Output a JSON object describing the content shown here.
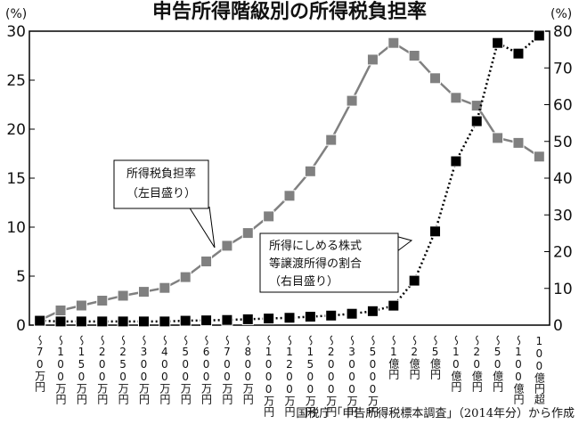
{
  "chart_data": {
    "type": "line",
    "title": "申告所得階級別の所得税負担率",
    "ylabel": "(%)",
    "y2label": "(%)",
    "categories": [
      "〜70万円",
      "〜100万円",
      "〜150万円",
      "〜200万円",
      "〜250万円",
      "〜300万円",
      "〜400万円",
      "〜500万円",
      "〜600万円",
      "〜700万円",
      "〜800万円",
      "〜1000万円",
      "〜1200万円",
      "〜1500万円",
      "〜2000万円",
      "〜3000万円",
      "〜5000万円",
      "〜1億円",
      "〜2億円",
      "〜5億円",
      "〜10億円",
      "〜20億円",
      "〜50億円",
      "〜100億円",
      "100億円超"
    ],
    "series": [
      {
        "color": "#808080",
        "line": "solid",
        "values": [
          0.5,
          1.5,
          2.0,
          2.5,
          3.0,
          3.4,
          3.8,
          4.9,
          6.5,
          8.1,
          9.4,
          11.1,
          13.2,
          15.7,
          18.9,
          22.9,
          27.1,
          28.8,
          27.5,
          25.2,
          23.2,
          22.4,
          19.1,
          18.6,
          17.2
        ]
      },
      {
        "color": "#000000",
        "line": "dotted",
        "axis": "y2",
        "values": [
          1.2,
          1.0,
          1.0,
          1.0,
          1.0,
          1.0,
          1.0,
          1.2,
          1.3,
          1.4,
          1.6,
          1.8,
          2.0,
          2.3,
          2.6,
          3.1,
          3.8,
          5.3,
          12.1,
          25.5,
          44.6,
          55.5,
          76.8,
          73.9,
          78.8
        ]
      }
    ],
    "ylim": [
      0,
      30
    ],
    "yticks": [
      0,
      5,
      10,
      15,
      20,
      25,
      30
    ],
    "y2lim": [
      0,
      80
    ],
    "y2ticks": [
      0,
      10,
      20,
      30,
      40,
      50,
      60,
      70,
      80
    ],
    "annotations": [
      {
        "lines": [
          "所得税負担率",
          "（左目盛り）"
        ]
      },
      {
        "lines": [
          "所得にしめる株式",
          "等譲渡所得の割合",
          "（右目盛り）"
        ]
      }
    ],
    "source": "国税庁「申告所得税標本調査」（2014年分）から作成"
  }
}
